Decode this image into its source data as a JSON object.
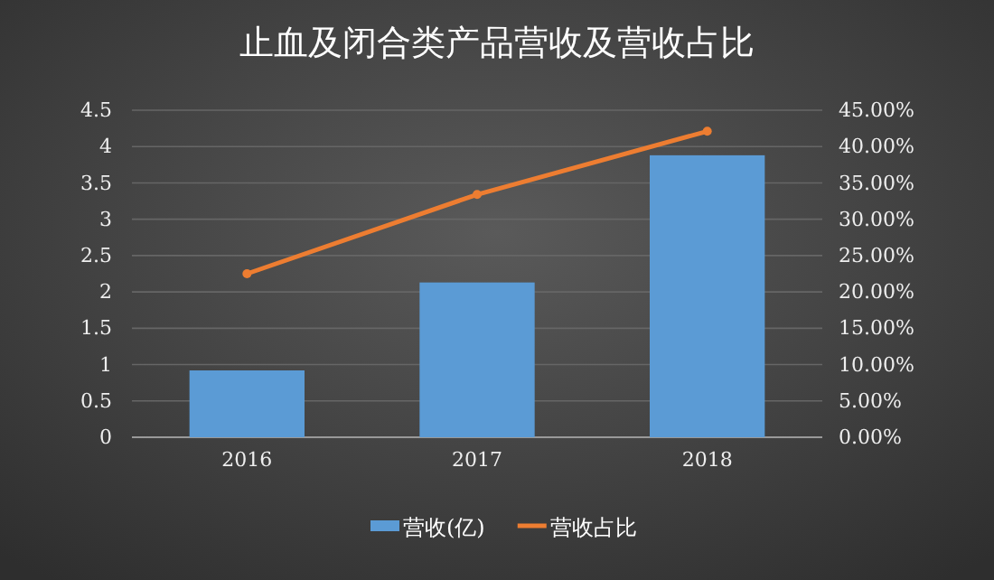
{
  "chart_data": {
    "type": "bar",
    "title": "止血及闭合类产品营收及营收占比",
    "categories": [
      "2016",
      "2017",
      "2018"
    ],
    "series": [
      {
        "name": "营收(亿)",
        "color": "#5b9bd5",
        "values": [
          0.92,
          2.13,
          3.88
        ]
      },
      {
        "name": "营收占比",
        "type": "line",
        "axis": "y2",
        "color": "#ed7d31",
        "values": [
          22.5,
          33.4,
          42.1
        ]
      }
    ],
    "ylim": [
      0,
      4.5
    ],
    "yticks": [
      0,
      0.5,
      1,
      1.5,
      2,
      2.5,
      3,
      3.5,
      4,
      4.5
    ],
    "y2lim": [
      0,
      45
    ],
    "y2ticks": [
      {
        "value": 0,
        "label": "0.00%"
      },
      {
        "value": 5,
        "label": "5.00%"
      },
      {
        "value": 10,
        "label": "10.00%"
      },
      {
        "value": 15,
        "label": "15.00%"
      },
      {
        "value": 20,
        "label": "20.00%"
      },
      {
        "value": 25,
        "label": "25.00%"
      },
      {
        "value": 30,
        "label": "30.00%"
      },
      {
        "value": 35,
        "label": "35.00%"
      },
      {
        "value": 40,
        "label": "40.00%"
      },
      {
        "value": 45,
        "label": "45.00%"
      }
    ],
    "grid": "y",
    "legend": "bottom",
    "marker": "circle"
  }
}
